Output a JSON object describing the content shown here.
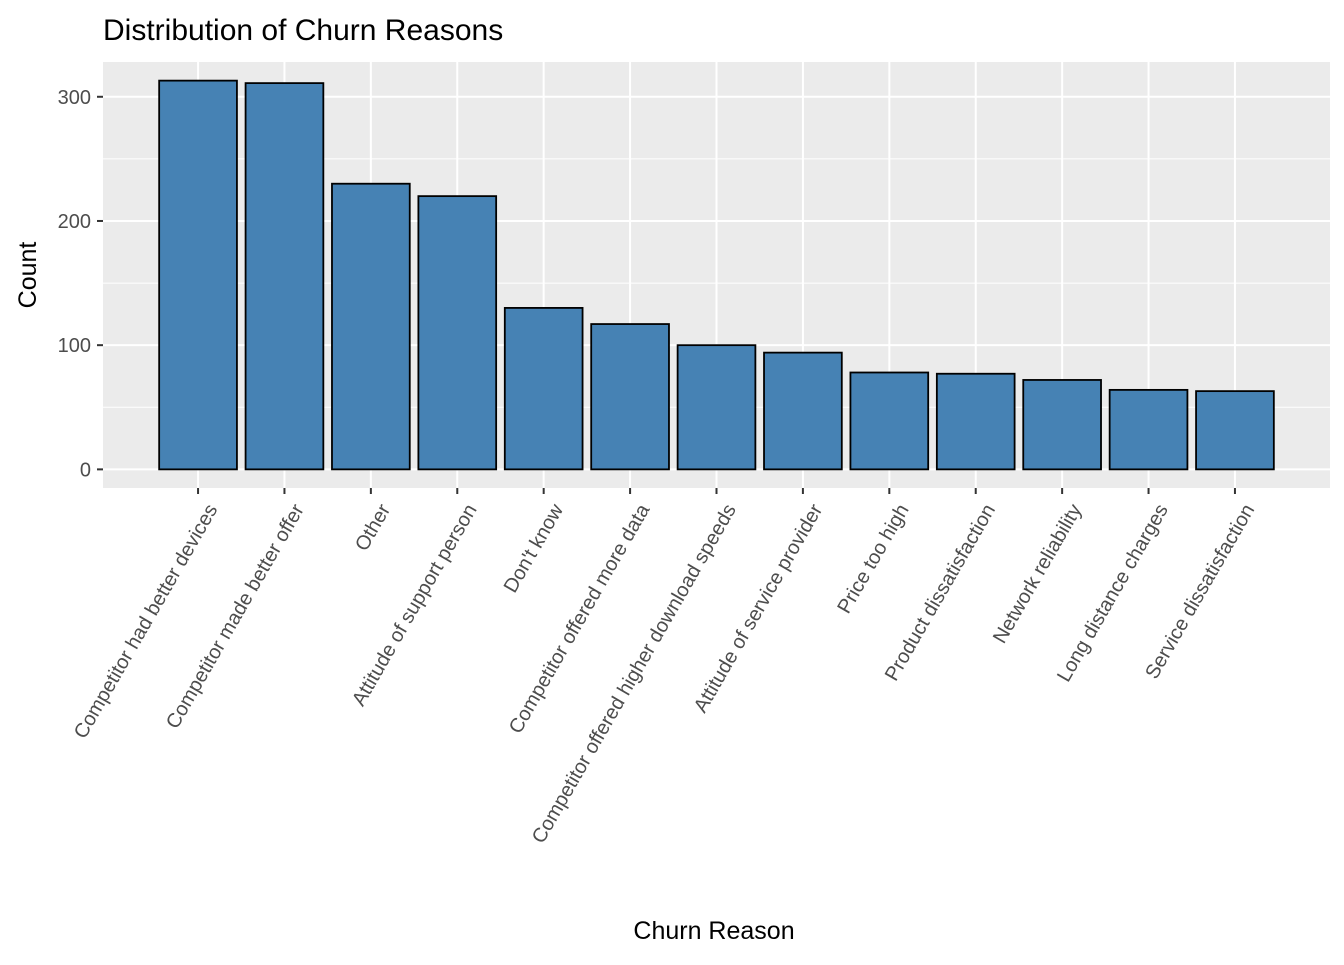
{
  "colors": {
    "panel_background": "#EBEBEB",
    "grid_line": "#FFFFFF",
    "bar_fill": "#4682B4",
    "bar_outline": "#000000",
    "axis_text": "#4D4D4D",
    "tick_mark": "#333333"
  },
  "chart_data": {
    "type": "bar",
    "title": "Distribution of Churn Reasons",
    "xlabel": "Churn Reason",
    "ylabel": "Count",
    "categories": [
      "Competitor had better devices",
      "Competitor made better offer",
      "Other",
      "Attitude of support person",
      "Don't know",
      "Competitor offered more data",
      "Competitor offered higher download speeds",
      "Attitude of service provider",
      "Price too high",
      "Product dissatisfaction",
      "Network reliability",
      "Long distance charges",
      "Service dissatisfaction"
    ],
    "values": [
      313,
      311,
      230,
      220,
      130,
      117,
      100,
      94,
      78,
      77,
      72,
      64,
      63
    ],
    "ylim": [
      -15,
      328
    ],
    "yticks": [
      0,
      100,
      200,
      300
    ],
    "x_tick_label_rotation": "-60 degrees",
    "grid": true,
    "legend": "none"
  }
}
